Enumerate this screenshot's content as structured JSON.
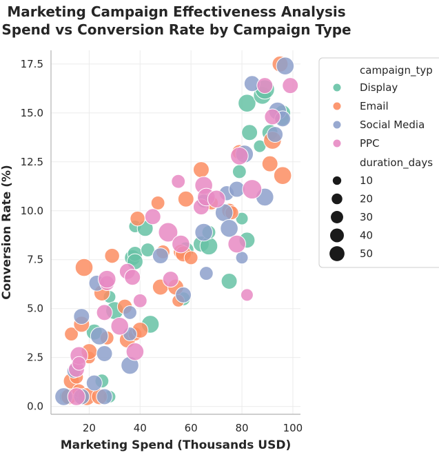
{
  "chart_data": {
    "type": "scatter",
    "title_lines": [
      "Marketing Campaign Effectiveness Analysis",
      "Spend vs Conversion Rate by Campaign Type"
    ],
    "xlabel": "Marketing Spend (Thousands USD)",
    "ylabel": "Conversion Rate (%)",
    "xlim": [
      5,
      103
    ],
    "ylim": [
      -0.4,
      18.2
    ],
    "xticks": [
      20,
      40,
      60,
      80,
      100
    ],
    "yticks": [
      0.0,
      2.5,
      5.0,
      7.5,
      10.0,
      12.5,
      15.0,
      17.5
    ],
    "ytick_labels": [
      "0.0",
      "2.5",
      "5.0",
      "7.5",
      "10.0",
      "12.5",
      "15.0",
      "17.5"
    ],
    "grid": true,
    "legend_placement": "outside-right",
    "legend_hue_title": "campaign_typ",
    "legend_size_title": "duration_days",
    "size_legend_values": [
      10,
      20,
      30,
      40,
      50
    ],
    "series": [
      {
        "name": "Display",
        "color": "#66c2a5",
        "points": [
          [
            11,
            0.5,
            20
          ],
          [
            17,
            0.5,
            30
          ],
          [
            22,
            3.8,
            30
          ],
          [
            25,
            1.3,
            20
          ],
          [
            28,
            0.5,
            15
          ],
          [
            28,
            5.6,
            15
          ],
          [
            30,
            4.9,
            40
          ],
          [
            37,
            7.6,
            30
          ],
          [
            38,
            7.8,
            25
          ],
          [
            38,
            7.4,
            30
          ],
          [
            38,
            9.2,
            15
          ],
          [
            42,
            9.1,
            30
          ],
          [
            43,
            8.0,
            20
          ],
          [
            44,
            4.2,
            40
          ],
          [
            57,
            5.5,
            20
          ],
          [
            58,
            8.0,
            30
          ],
          [
            64,
            8.3,
            30
          ],
          [
            67,
            8.2,
            40
          ],
          [
            67,
            8.9,
            20
          ],
          [
            75,
            6.4,
            30
          ],
          [
            79,
            12.0,
            20
          ],
          [
            80,
            9.6,
            15
          ],
          [
            82,
            8.5,
            30
          ],
          [
            82,
            15.5,
            40
          ],
          [
            83,
            14.0,
            30
          ],
          [
            87,
            13.3,
            15
          ],
          [
            88,
            15.9,
            40
          ],
          [
            89,
            16.2,
            50
          ],
          [
            91,
            14.0,
            30
          ],
          [
            96,
            15.0,
            30
          ],
          [
            96,
            14.7,
            20
          ]
        ]
      },
      {
        "name": "Email",
        "color": "#fc8d62",
        "points": [
          [
            12,
            0.5,
            30
          ],
          [
            13,
            1.3,
            30
          ],
          [
            13,
            3.7,
            20
          ],
          [
            15,
            1.5,
            20
          ],
          [
            16,
            0.8,
            20
          ],
          [
            17,
            4.2,
            30
          ],
          [
            18,
            7.1,
            40
          ],
          [
            19,
            0.5,
            40
          ],
          [
            20,
            2.5,
            15
          ],
          [
            20,
            2.8,
            30
          ],
          [
            24,
            0.5,
            30
          ],
          [
            25,
            5.8,
            30
          ],
          [
            27,
            3.5,
            20
          ],
          [
            29,
            7.7,
            25
          ],
          [
            34,
            5.1,
            25
          ],
          [
            35,
            3.4,
            30
          ],
          [
            38,
            3.7,
            20
          ],
          [
            39,
            9.6,
            25
          ],
          [
            40,
            3.9,
            30
          ],
          [
            47,
            10.4,
            20
          ],
          [
            48,
            6.1,
            30
          ],
          [
            49,
            7.9,
            20
          ],
          [
            54,
            6.1,
            30
          ],
          [
            55,
            5.4,
            15
          ],
          [
            56,
            7.9,
            25
          ],
          [
            57,
            7.8,
            30
          ],
          [
            58,
            10.6,
            30
          ],
          [
            60,
            7.6,
            20
          ],
          [
            64,
            12.1,
            30
          ],
          [
            68,
            10.4,
            20
          ],
          [
            75,
            10.0,
            25
          ],
          [
            76,
            9.9,
            20
          ],
          [
            79,
            13.0,
            25
          ],
          [
            91,
            12.4,
            30
          ],
          [
            92,
            13.6,
            40
          ],
          [
            95,
            17.5,
            30
          ],
          [
            96,
            11.8,
            40
          ]
        ]
      },
      {
        "name": "Social Media",
        "color": "#8da0cb",
        "points": [
          [
            10,
            0.5,
            40
          ],
          [
            14,
            1.8,
            20
          ],
          [
            17,
            4.6,
            30
          ],
          [
            17,
            0.5,
            30
          ],
          [
            22,
            1.2,
            30
          ],
          [
            23,
            6.3,
            30
          ],
          [
            24,
            3.6,
            40
          ],
          [
            26,
            2.7,
            30
          ],
          [
            26,
            0.5,
            30
          ],
          [
            36,
            2.1,
            40
          ],
          [
            36,
            3.7,
            20
          ],
          [
            36,
            4.8,
            20
          ],
          [
            48,
            7.7,
            30
          ],
          [
            57,
            5.7,
            30
          ],
          [
            65,
            10.5,
            20
          ],
          [
            65,
            8.9,
            40
          ],
          [
            66,
            6.8,
            20
          ],
          [
            73,
            9.9,
            40
          ],
          [
            74,
            10.9,
            25
          ],
          [
            75,
            9.1,
            40
          ],
          [
            78,
            11.1,
            30
          ],
          [
            80,
            7.6,
            15
          ],
          [
            81,
            12.9,
            40
          ],
          [
            84,
            16.5,
            30
          ],
          [
            89,
            10.7,
            40
          ],
          [
            93,
            13.9,
            30
          ],
          [
            94,
            15.1,
            40
          ],
          [
            96,
            14.7,
            30
          ],
          [
            97,
            17.4,
            40
          ]
        ]
      },
      {
        "name": "PPC",
        "color": "#e78ac3",
        "points": [
          [
            15,
            0.5,
            40
          ],
          [
            15,
            1.9,
            30
          ],
          [
            16,
            2.6,
            40
          ],
          [
            16,
            2.2,
            20
          ],
          [
            26,
            4.8,
            30
          ],
          [
            27,
            6.3,
            25
          ],
          [
            27,
            6.5,
            40
          ],
          [
            32,
            4.1,
            40
          ],
          [
            35,
            6.9,
            30
          ],
          [
            37,
            6.6,
            30
          ],
          [
            38,
            2.8,
            40
          ],
          [
            40,
            5.4,
            20
          ],
          [
            45,
            9.7,
            30
          ],
          [
            51,
            8.9,
            50
          ],
          [
            52,
            6.5,
            30
          ],
          [
            55,
            11.5,
            20
          ],
          [
            56,
            8.3,
            40
          ],
          [
            64,
            10.2,
            30
          ],
          [
            65,
            11.3,
            40
          ],
          [
            66,
            10.7,
            40
          ],
          [
            70,
            10.6,
            40
          ],
          [
            78,
            8.3,
            40
          ],
          [
            79,
            12.8,
            40
          ],
          [
            82,
            5.7,
            15
          ],
          [
            84,
            11.1,
            50
          ],
          [
            89,
            16.4,
            30
          ],
          [
            92,
            14.8,
            30
          ],
          [
            99,
            16.4,
            30
          ]
        ]
      }
    ]
  }
}
